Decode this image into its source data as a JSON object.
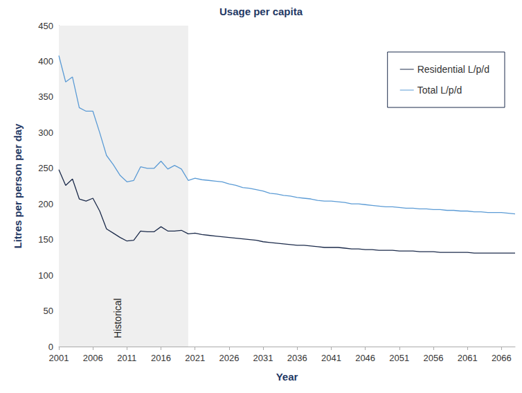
{
  "chart_data": {
    "type": "line",
    "title": "Usage per capita",
    "x_label": "Year",
    "y_label": "Litres per person per day",
    "x": [
      2001,
      2002,
      2003,
      2004,
      2005,
      2006,
      2007,
      2008,
      2009,
      2010,
      2011,
      2012,
      2013,
      2014,
      2015,
      2016,
      2017,
      2018,
      2019,
      2020,
      2021,
      2022,
      2023,
      2024,
      2025,
      2026,
      2027,
      2028,
      2029,
      2030,
      2031,
      2032,
      2033,
      2034,
      2035,
      2036,
      2037,
      2038,
      2039,
      2040,
      2041,
      2042,
      2043,
      2044,
      2045,
      2046,
      2047,
      2048,
      2049,
      2050,
      2051,
      2052,
      2053,
      2054,
      2055,
      2056,
      2057,
      2058,
      2059,
      2060,
      2061,
      2062,
      2063,
      2064,
      2065,
      2066,
      2067,
      2068
    ],
    "series": [
      {
        "name": "Residential L/p/d",
        "color": "#1b2a4a",
        "values": [
          248,
          226,
          235,
          207,
          204,
          208,
          190,
          165,
          159,
          153,
          148,
          149,
          162,
          161,
          161,
          168,
          162,
          162,
          163,
          158,
          159,
          157,
          156,
          155,
          154,
          153,
          152,
          151,
          150,
          149,
          147,
          146,
          145,
          144,
          143,
          142,
          142,
          141,
          140,
          139,
          139,
          139,
          138,
          137,
          137,
          136,
          136,
          135,
          135,
          135,
          134,
          134,
          134,
          133,
          133,
          133,
          132,
          132,
          132,
          132,
          132,
          131,
          131,
          131,
          131,
          131,
          131,
          131
        ]
      },
      {
        "name": "Total L/p/d",
        "color": "#5b9bd5",
        "values": [
          408,
          371,
          378,
          335,
          330,
          330,
          300,
          268,
          255,
          240,
          231,
          233,
          252,
          250,
          250,
          260,
          249,
          254,
          249,
          233,
          236,
          234,
          233,
          232,
          231,
          228,
          226,
          223,
          222,
          220,
          218,
          215,
          214,
          212,
          211,
          209,
          208,
          207,
          205,
          204,
          204,
          203,
          202,
          200,
          200,
          199,
          198,
          197,
          196,
          196,
          195,
          194,
          194,
          193,
          193,
          192,
          192,
          191,
          191,
          190,
          190,
          189,
          189,
          188,
          188,
          188,
          187,
          186
        ]
      }
    ],
    "shaded_region": {
      "label": "Historical",
      "x": [
        2001,
        2020
      ]
    },
    "xlim": [
      2001,
      2068
    ],
    "xticks": [
      2001,
      2006,
      2011,
      2016,
      2021,
      2026,
      2031,
      2036,
      2041,
      2046,
      2051,
      2056,
      2061,
      2066
    ],
    "ylim": [
      0,
      450
    ],
    "yticks": [
      0,
      50,
      100,
      150,
      200,
      250,
      300,
      350,
      400,
      450
    ],
    "grid": false,
    "legend": "upper right"
  }
}
